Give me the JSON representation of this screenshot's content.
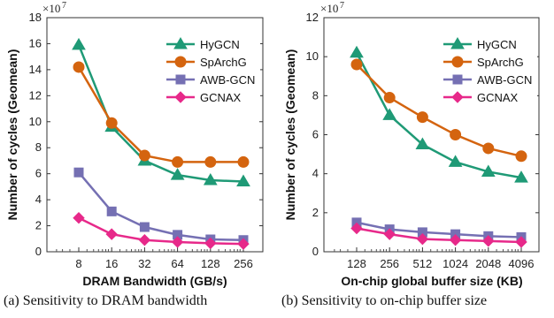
{
  "chart_data": [
    {
      "type": "line",
      "x": [
        "8",
        "16",
        "32",
        "64",
        "128",
        "256"
      ],
      "xlabel": "DRAM Bandwidth (GB/s)",
      "ylabel": "Number of cycles (Geomean)",
      "ylim": [
        0,
        18
      ],
      "yticks": [
        "0",
        "2",
        "4",
        "6",
        "8",
        "10",
        "12",
        "14",
        "16",
        "18"
      ],
      "yscale_exponent": "×10",
      "yscale_power": "7",
      "legend_position": "top-right",
      "grid": false,
      "series": [
        {
          "name": "HyGCN",
          "values": [
            15.9,
            9.6,
            7.0,
            5.9,
            5.5,
            5.4
          ]
        },
        {
          "name": "SpArchG",
          "values": [
            14.2,
            9.9,
            7.4,
            6.9,
            6.9,
            6.9
          ]
        },
        {
          "name": "AWB-GCN",
          "values": [
            6.1,
            3.1,
            1.9,
            1.3,
            0.95,
            0.9
          ]
        },
        {
          "name": "GCNAX",
          "values": [
            2.6,
            1.35,
            0.9,
            0.75,
            0.65,
            0.6
          ]
        }
      ],
      "caption": "(a) Sensitivity to DRAM bandwidth"
    },
    {
      "type": "line",
      "x": [
        "128",
        "256",
        "512",
        "1024",
        "2048",
        "4096"
      ],
      "xlabel": "On-chip global buffer size (KB)",
      "ylabel": "Number of cycles (Geomean)",
      "ylim": [
        0,
        12
      ],
      "yticks": [
        "0",
        "2",
        "4",
        "6",
        "8",
        "10",
        "12"
      ],
      "yscale_exponent": "×10",
      "yscale_power": "7",
      "legend_position": "top-right",
      "grid": false,
      "series": [
        {
          "name": "HyGCN",
          "values": [
            10.2,
            7.0,
            5.5,
            4.6,
            4.1,
            3.8
          ]
        },
        {
          "name": "SpArchG",
          "values": [
            9.6,
            7.9,
            6.9,
            6.0,
            5.3,
            4.9
          ]
        },
        {
          "name": "AWB-GCN",
          "values": [
            1.5,
            1.15,
            1.0,
            0.9,
            0.8,
            0.75
          ]
        },
        {
          "name": "GCNAX",
          "values": [
            1.2,
            0.9,
            0.65,
            0.6,
            0.55,
            0.5
          ]
        }
      ],
      "caption": "(b) Sensitivity to on-chip buffer size"
    }
  ],
  "styles": {
    "HyGCN": {
      "color": "#1f9a76",
      "marker": "triangle"
    },
    "SpArchG": {
      "color": "#d4640f",
      "marker": "circle"
    },
    "AWB-GCN": {
      "color": "#7570b3",
      "marker": "square"
    },
    "GCNAX": {
      "color": "#e7298a",
      "marker": "diamond"
    }
  }
}
